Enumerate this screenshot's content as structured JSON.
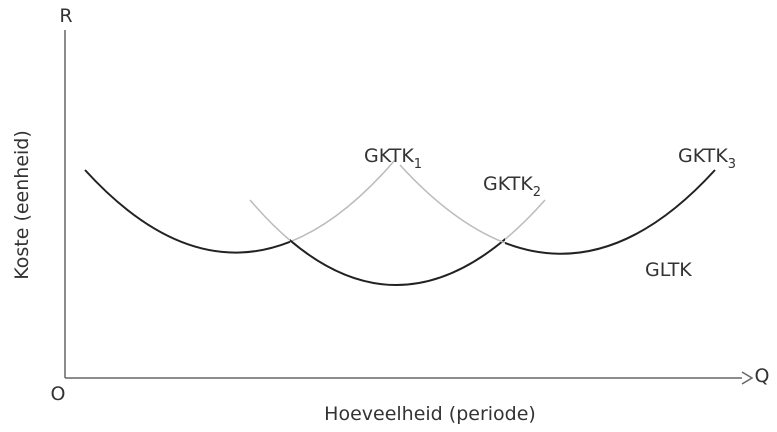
{
  "axes": {
    "y_top": "R",
    "x_end": "Q",
    "origin": "O",
    "y_label": "Koste (eenheid)",
    "x_label": "Hoeveelheid (periode)"
  },
  "curves": [
    {
      "label": "GKTK",
      "subscript": "1"
    },
    {
      "label": "GKTK",
      "subscript": "2"
    },
    {
      "label": "GKTK",
      "subscript": "3"
    }
  ],
  "envelope": "GLTK"
}
